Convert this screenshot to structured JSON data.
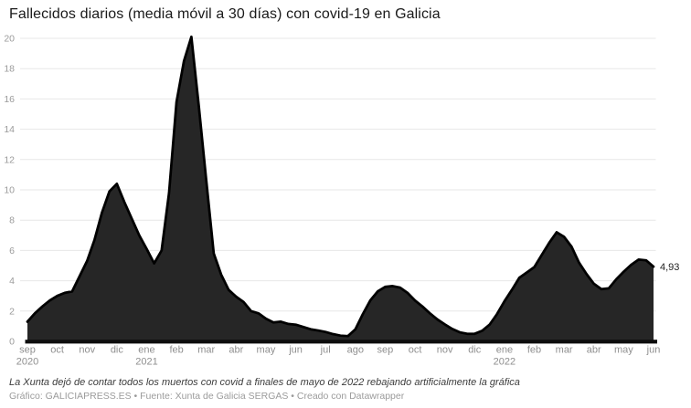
{
  "header": {
    "title": "Fallecidos diarios (media móvil a 30 días) con covid-19 en Galicia"
  },
  "footer": {
    "note": "La Xunta dejó de contar todos los muertos con covid a finales de mayo de 2022 rebajando artificialmente la gráfica",
    "credits": "Gráfico: GALICIAPRESS.ES • Fuente: Xunta de Galicia SERGAS • Creado con Datawrapper"
  },
  "chart_data": {
    "type": "area",
    "title": "Fallecidos diarios (media móvil a 30 días) con covid-19 en Galicia",
    "x_start": "2020-09",
    "x_end": "2022-06",
    "samples_per_month": 4,
    "x_tick_labels": [
      "sep",
      "oct",
      "nov",
      "dic",
      "ene",
      "feb",
      "mar",
      "abr",
      "may",
      "jun",
      "jul",
      "ago",
      "sep",
      "oct",
      "nov",
      "dic",
      "ene",
      "feb",
      "mar",
      "abr",
      "may",
      "jun"
    ],
    "year_labels": [
      {
        "tick_index": 0,
        "label": "2020"
      },
      {
        "tick_index": 4,
        "label": "2021"
      },
      {
        "tick_index": 16,
        "label": "2022"
      }
    ],
    "y_ticks": [
      0,
      2,
      4,
      6,
      8,
      10,
      12,
      14,
      16,
      18,
      20
    ],
    "ylim": [
      0,
      20
    ],
    "grid": true,
    "legend": "none",
    "end_label": "4,93",
    "end_value": 4.93,
    "values": [
      1.3,
      1.85,
      2.3,
      2.7,
      3.0,
      3.2,
      3.3,
      4.3,
      5.3,
      6.7,
      8.5,
      9.9,
      10.4,
      9.2,
      8.1,
      7.0,
      6.1,
      5.15,
      6.0,
      9.8,
      15.8,
      18.5,
      20.1,
      15.5,
      10.6,
      5.8,
      4.4,
      3.4,
      2.95,
      2.6,
      2.0,
      1.85,
      1.5,
      1.25,
      1.3,
      1.15,
      1.1,
      0.95,
      0.8,
      0.72,
      0.62,
      0.48,
      0.38,
      0.35,
      0.8,
      1.8,
      2.7,
      3.3,
      3.6,
      3.65,
      3.55,
      3.2,
      2.7,
      2.3,
      1.85,
      1.45,
      1.12,
      0.82,
      0.6,
      0.5,
      0.5,
      0.7,
      1.1,
      1.8,
      2.65,
      3.4,
      4.2,
      4.55,
      4.9,
      5.7,
      6.5,
      7.2,
      6.9,
      6.25,
      5.2,
      4.45,
      3.8,
      3.45,
      3.5,
      4.1,
      4.6,
      5.05,
      5.4,
      5.35,
      4.93
    ],
    "colors": {
      "area_fill": "#262626",
      "line": "#000000",
      "grid": "#e7e7e7",
      "axis": "#0d0d0d",
      "y_tick_text": "#9b9b9b",
      "x_tick_text": "#8f8f8f",
      "end_label_text": "#222222"
    }
  }
}
